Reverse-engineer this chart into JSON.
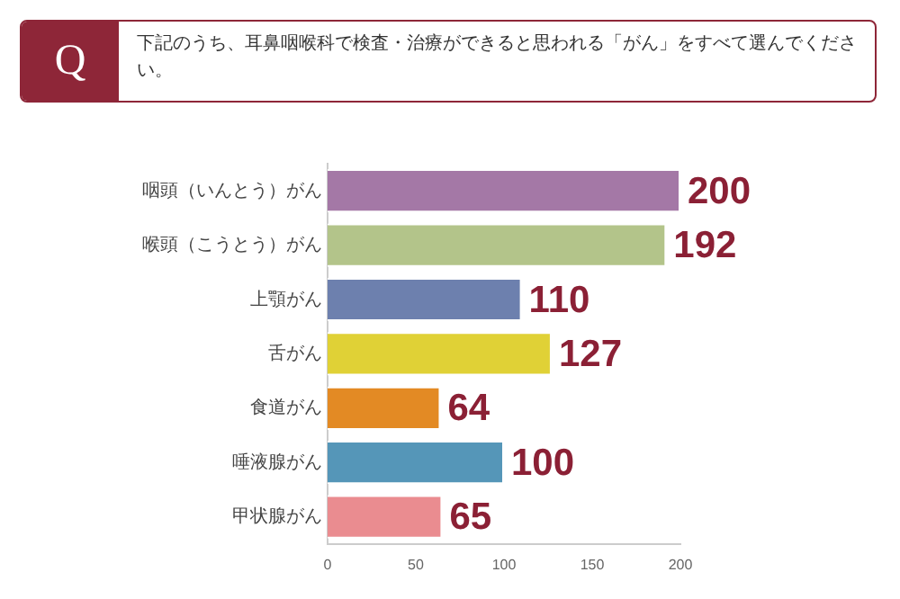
{
  "chart_data": {
    "type": "bar",
    "orientation": "horizontal",
    "title": "下記のうち、耳鼻咽喉科で検査・治療ができると思われる「がん」をすべて選んでください。",
    "annotations": [
      "Q"
    ],
    "categories": [
      "咽頭（いんとう）がん",
      "喉頭（こうとう）がん",
      "上顎がん",
      "舌がん",
      "食道がん",
      "唾液腺がん",
      "甲状腺がん"
    ],
    "values": [
      200,
      192,
      110,
      127,
      64,
      100,
      65
    ],
    "colors": [
      "#a478a6",
      "#b3c48a",
      "#6d80ae",
      "#e0d136",
      "#e38a24",
      "#5596b8",
      "#ea8c90"
    ],
    "xlim": [
      0,
      200
    ],
    "xticks": [
      0,
      50,
      100,
      150,
      200
    ],
    "grid": false,
    "legend": false,
    "data_labels": true
  }
}
